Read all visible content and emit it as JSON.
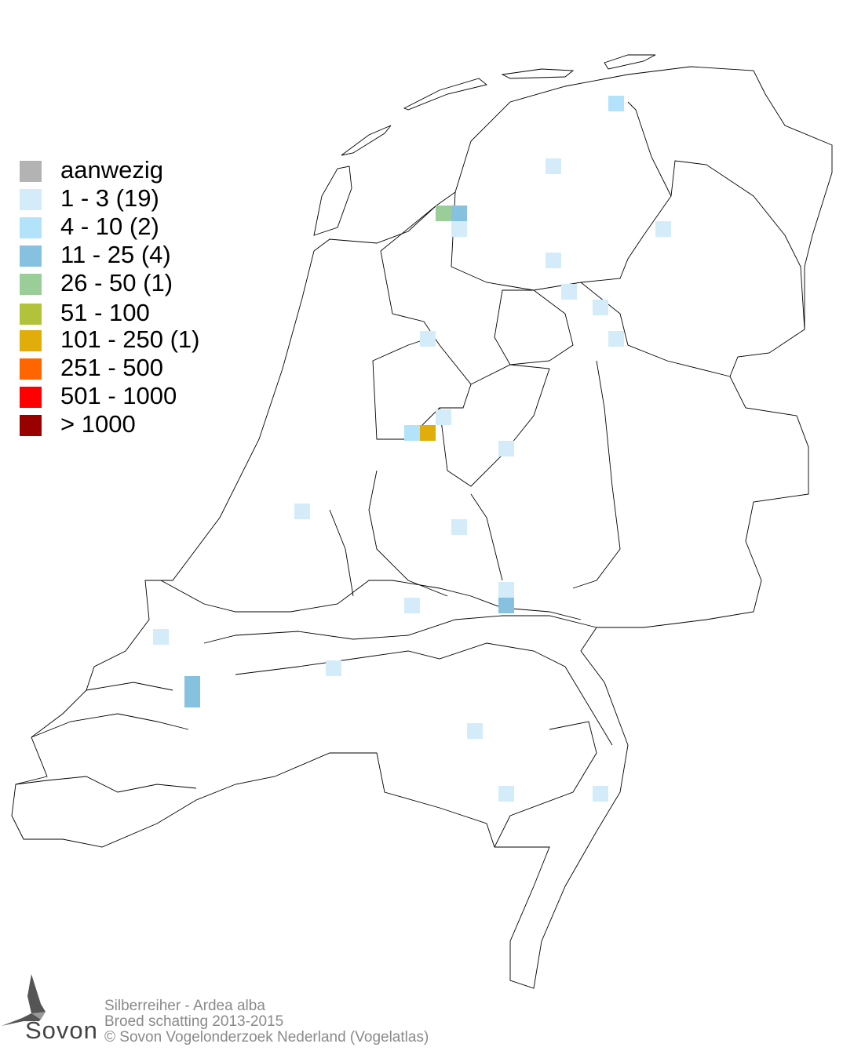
{
  "legend": {
    "items": [
      {
        "label": "aanwezig",
        "color": "#b3b3b3"
      },
      {
        "label": "1 - 3 (19)",
        "color": "#d4ecfa"
      },
      {
        "label": "4 - 10 (2)",
        "color": "#b3e3fb"
      },
      {
        "label": "11 - 25 (4)",
        "color": "#86c2df"
      },
      {
        "label": "26 - 50 (1)",
        "color": "#9acd98"
      },
      {
        "label": "51 - 100",
        "color": "#b2c23a"
      },
      {
        "label": "101 - 250 (1)",
        "color": "#e0ad0a"
      },
      {
        "label": "251 - 500",
        "color": "#ff6600"
      },
      {
        "label": "501 - 1000",
        "color": "#ff0000"
      },
      {
        "label": "> 1000",
        "color": "#990000"
      }
    ]
  },
  "map_cells": [
    {
      "col": 38,
      "row": 6,
      "class": 2
    },
    {
      "col": 34,
      "row": 10,
      "class": 1
    },
    {
      "col": 27,
      "row": 13,
      "class": 4
    },
    {
      "col": 28,
      "row": 13,
      "class": 3
    },
    {
      "col": 28,
      "row": 14,
      "class": 1
    },
    {
      "col": 41,
      "row": 14,
      "class": 1
    },
    {
      "col": 34,
      "row": 16,
      "class": 1
    },
    {
      "col": 35,
      "row": 18,
      "class": 1
    },
    {
      "col": 37,
      "row": 19,
      "class": 1
    },
    {
      "col": 38,
      "row": 21,
      "class": 1
    },
    {
      "col": 26,
      "row": 21,
      "class": 1
    },
    {
      "col": 27,
      "row": 26,
      "class": 1
    },
    {
      "col": 25,
      "row": 27,
      "class": 2
    },
    {
      "col": 26,
      "row": 27,
      "class": 6
    },
    {
      "col": 31,
      "row": 28,
      "class": 1
    },
    {
      "col": 18,
      "row": 32,
      "class": 1
    },
    {
      "col": 28,
      "row": 33,
      "class": 1
    },
    {
      "col": 31,
      "row": 37,
      "class": 1
    },
    {
      "col": 31,
      "row": 38,
      "class": 3
    },
    {
      "col": 25,
      "row": 38,
      "class": 1
    },
    {
      "col": 9,
      "row": 40,
      "class": 1
    },
    {
      "col": 20,
      "row": 42,
      "class": 1
    },
    {
      "col": 11,
      "row": 43,
      "class": 3
    },
    {
      "col": 11,
      "row": 44,
      "class": 3
    },
    {
      "col": 29,
      "row": 46,
      "class": 1
    },
    {
      "col": 31,
      "row": 50,
      "class": 1
    },
    {
      "col": 37,
      "row": 50,
      "class": 1
    }
  ],
  "credits": {
    "line1": "Silberreiher - Ardea alba",
    "line2": "Broed schatting 2013-2015",
    "line3": "© Sovon Vogelonderzoek Nederland (Vogelatlas)"
  },
  "logo": {
    "text": "Sovon"
  }
}
